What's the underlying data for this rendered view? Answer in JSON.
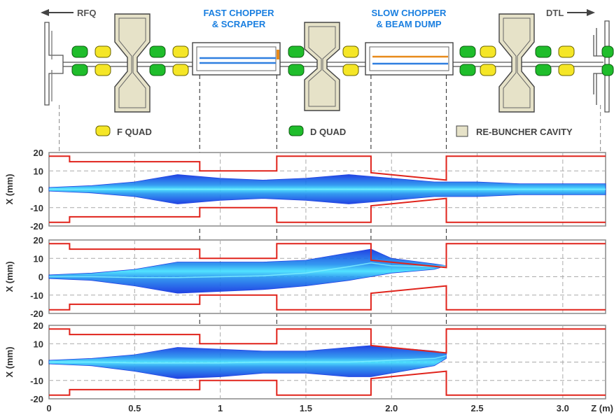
{
  "top_labels": {
    "left_arrow": "RFQ",
    "right_arrow": "DTL",
    "chopper_fast": [
      "FAST CHOPPER",
      "& SCRAPER"
    ],
    "chopper_slow": [
      "SLOW CHOPPER",
      "& BEAM DUMP"
    ]
  },
  "legend": {
    "f_quad": "F QUAD",
    "d_quad": "D QUAD",
    "rebuncher": "RE-BUNCHER CAVITY"
  },
  "colors": {
    "f_quad": "#f5e626",
    "d_quad": "#1fbd2b",
    "rebuncher": "#e6e2c8",
    "aperture": "#e0231b",
    "title_blue": "#1a7fe0",
    "beam_dark": "#0a2fe0",
    "beam_light": "#3fd6ff",
    "fast_plate": "#2f7fe0",
    "slow_plate": "#e88a1a"
  },
  "panels": [
    {
      "ylabel": "X (mm)",
      "yticks": [
        "20",
        "10",
        "0",
        "-10",
        "-20"
      ]
    },
    {
      "ylabel": "X (mm)",
      "yticks": [
        "20",
        "10",
        "0",
        "-10",
        "-20"
      ]
    },
    {
      "ylabel": "X (mm)",
      "yticks": [
        "20",
        "10",
        "0",
        "-10",
        "-20"
      ]
    }
  ],
  "x_axis": {
    "ticks": [
      "0",
      "0.5",
      "1",
      "1.5",
      "2.0",
      "2.5",
      "3.0"
    ],
    "unit_label": "Z (m)"
  },
  "chart_data": {
    "type": "area",
    "xlabel": "Z (m)",
    "ylabel": "X (mm)",
    "xlim": [
      0,
      3.25
    ],
    "ylim": [
      -20,
      20
    ],
    "x_ticks": [
      0,
      0.5,
      1,
      1.5,
      2.0,
      2.5,
      3.0
    ],
    "y_ticks": [
      20,
      10,
      0,
      -10,
      -20
    ],
    "grid": true,
    "aperture_z": [
      0,
      0.12,
      0.12,
      0.88,
      0.88,
      1.33,
      1.33,
      1.88,
      1.88,
      2.32,
      2.32,
      3.08,
      3.08,
      3.25
    ],
    "aperture_x": [
      18,
      18,
      15,
      15,
      10,
      10,
      18,
      18,
      9,
      5,
      18,
      18,
      18,
      18
    ],
    "panels": [
      {
        "z": [
          0,
          0.25,
          0.5,
          0.75,
          1.0,
          1.25,
          1.5,
          1.75,
          2.0,
          2.25,
          2.5,
          2.75,
          3.0,
          3.25
        ],
        "upper": [
          1,
          2,
          4,
          8,
          6,
          5,
          6,
          8,
          6,
          4,
          4,
          3,
          3,
          3
        ],
        "lower": [
          -1,
          -2,
          -4,
          -8,
          -6,
          -5,
          -6,
          -8,
          -6,
          -4,
          -4,
          -3,
          -3,
          -3
        ]
      },
      {
        "z": [
          0,
          0.25,
          0.5,
          0.75,
          1.0,
          1.25,
          1.5,
          1.75,
          1.88,
          2.0,
          2.25,
          2.32
        ],
        "upper": [
          1,
          2,
          4,
          8,
          8,
          8,
          9,
          13,
          15,
          10,
          7,
          6
        ],
        "lower": [
          -1,
          -2,
          -5,
          -9,
          -8,
          -7,
          -5,
          -2,
          0,
          2,
          4,
          6
        ]
      },
      {
        "z": [
          0,
          0.25,
          0.5,
          0.75,
          1.0,
          1.25,
          1.5,
          1.75,
          1.88,
          2.0,
          2.25,
          2.32
        ],
        "upper": [
          1,
          2,
          4,
          8,
          7,
          6,
          6,
          8,
          9,
          8,
          6,
          5
        ],
        "lower": [
          -1,
          -2,
          -5,
          -9,
          -8,
          -6,
          -6,
          -8,
          -8,
          -6,
          -2,
          2
        ]
      }
    ],
    "fast_chopper_z": [
      0.88,
      1.33
    ],
    "slow_chopper_z": [
      1.88,
      2.32
    ]
  }
}
